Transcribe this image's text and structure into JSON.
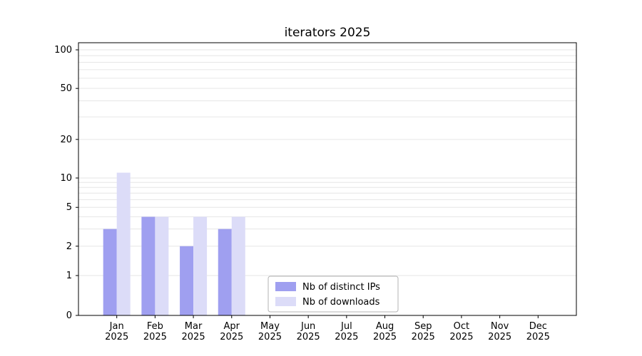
{
  "chart_data": {
    "type": "bar",
    "title": "iterators 2025",
    "xlabel": "",
    "ylabel": "",
    "categories": [
      "Jan",
      "Feb",
      "Mar",
      "Apr",
      "May",
      "Jun",
      "Jul",
      "Aug",
      "Sep",
      "Oct",
      "Nov",
      "Dec"
    ],
    "year_label": "2025",
    "series": [
      {
        "name": "Nb of distinct IPs",
        "color": "#9f9ff0",
        "values": [
          3,
          4,
          2,
          3,
          0,
          0,
          0,
          0,
          0,
          0,
          0,
          0
        ]
      },
      {
        "name": "Nb of downloads",
        "color": "#dcdcf8",
        "values": [
          11,
          4,
          4,
          4,
          0,
          0,
          0,
          0,
          0,
          0,
          0,
          0
        ]
      }
    ],
    "scale": "symlog",
    "y_ticks": [
      0,
      1,
      2,
      5,
      10,
      20,
      50,
      100
    ],
    "y_minor_gridlines": [
      3,
      4,
      6,
      7,
      8,
      9,
      30,
      40,
      60,
      70,
      80,
      90
    ],
    "ylim": [
      0,
      110
    ],
    "grid": "horizontal",
    "legend_position": "lower-center-left",
    "colors": {
      "gridline": "#e6e6e6",
      "axis": "#000000",
      "text": "#000000",
      "legend_border": "#b3b3b3",
      "background": "#ffffff"
    }
  }
}
